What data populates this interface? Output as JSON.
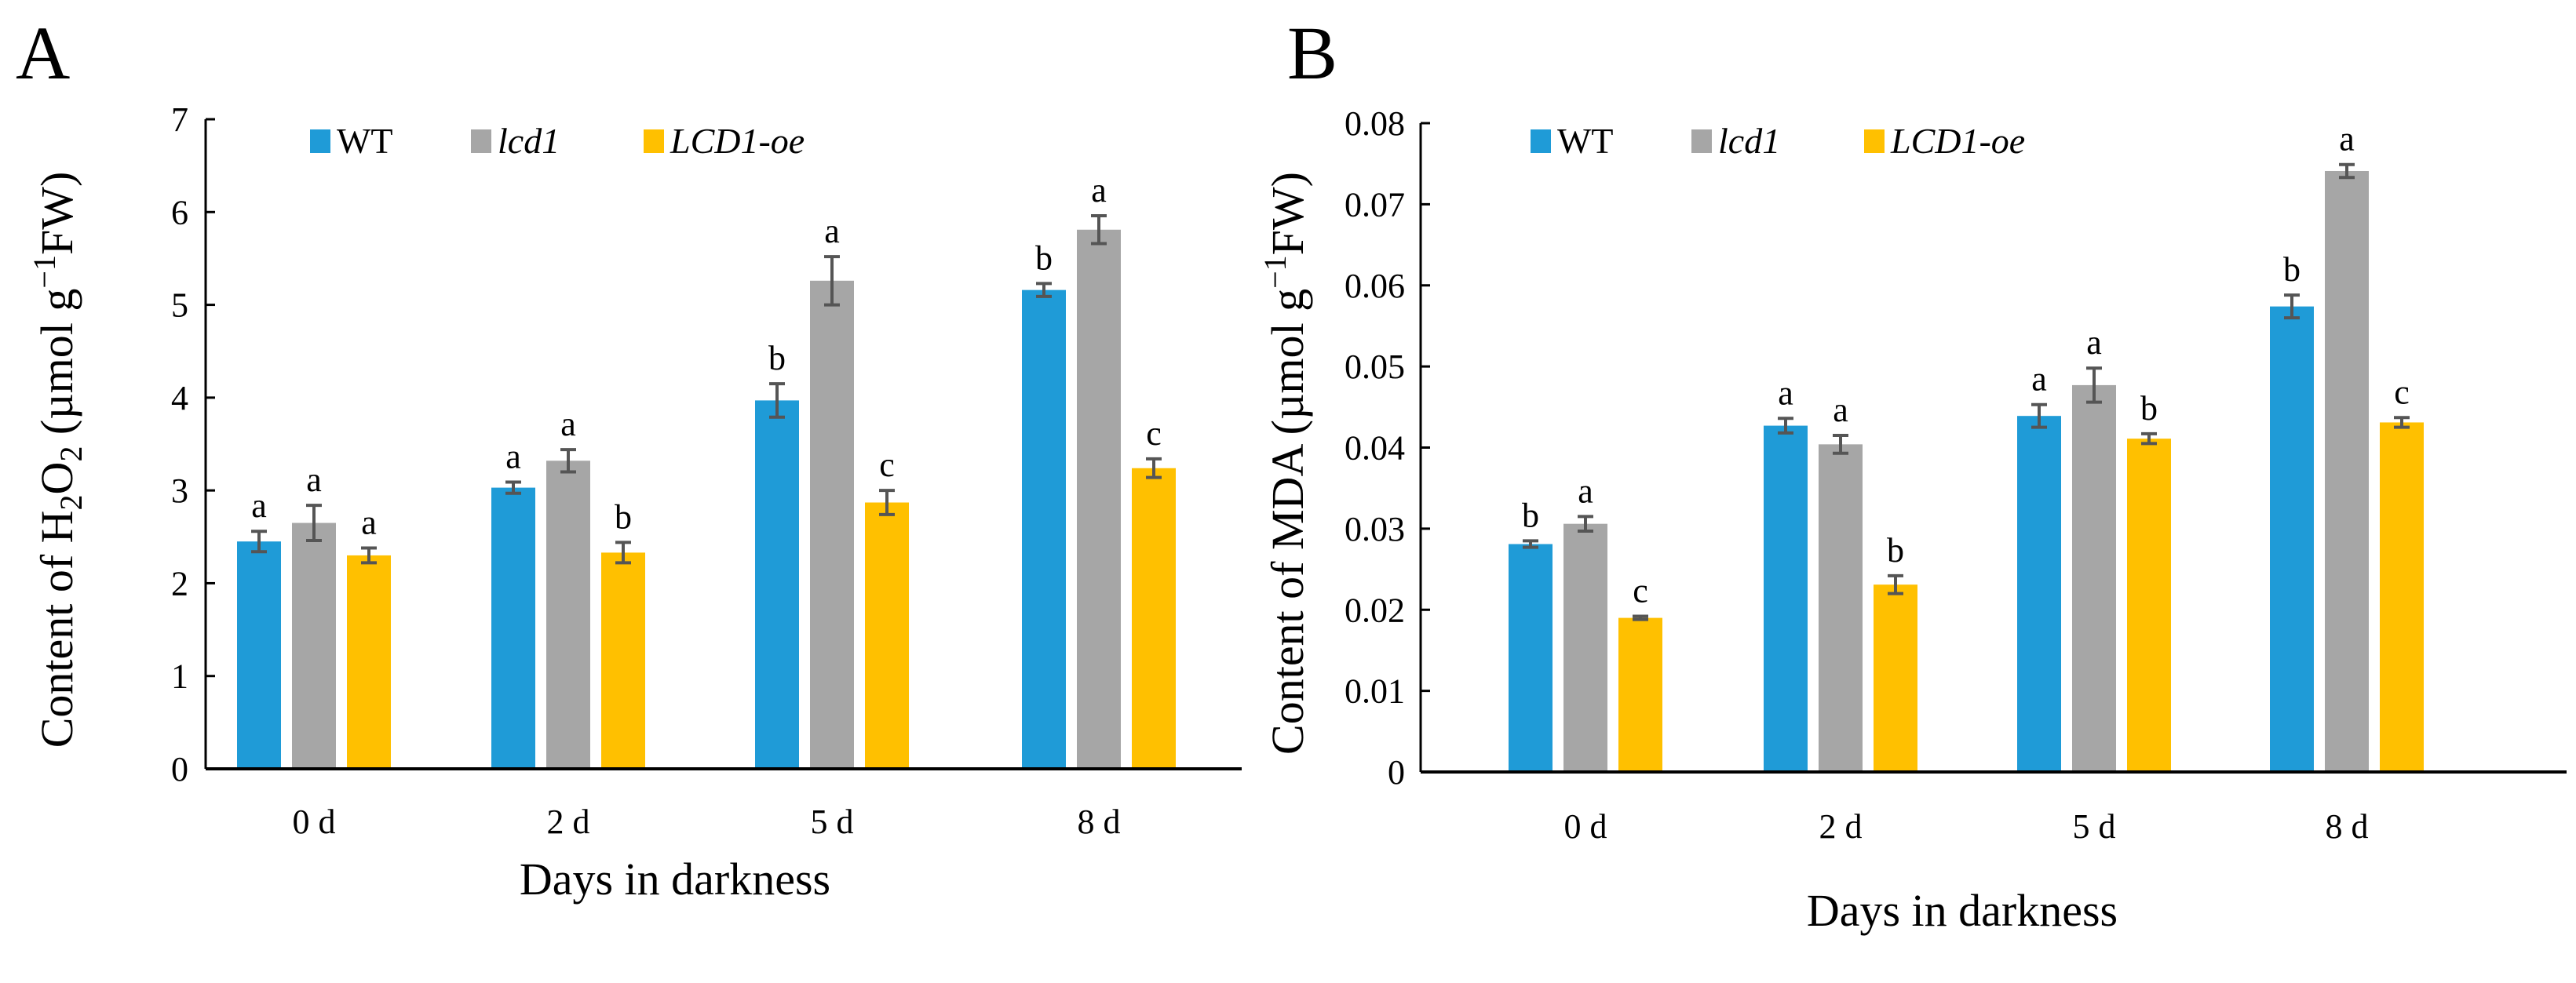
{
  "colors": {
    "WT": "#1f9bd7",
    "lcd1": "#a6a6a6",
    "LCD1-oe": "#ffc000",
    "error": "#555555"
  },
  "chart_data": [
    {
      "panel_label": "A",
      "type": "bar",
      "categories": [
        "0 d",
        "2 d",
        "5 d",
        "8 d"
      ],
      "xlabel": "Days in darkness",
      "ylabel": "Content of H2O2 (µmol g−1 FW)",
      "ylabel_parts": {
        "pre": "Content of H",
        "sub": "2",
        "mid": "O",
        "sub2": "2",
        "post": " (µmol g",
        "sup": "−1",
        "end": "FW)"
      },
      "ylim": [
        0,
        7
      ],
      "yticks": [
        "0",
        "1",
        "2",
        "3",
        "4",
        "5",
        "6",
        "7"
      ],
      "legend_position": "top",
      "series": [
        {
          "name": "WT",
          "italic": false,
          "values": [
            2.45,
            3.03,
            3.97,
            5.16
          ],
          "errors": [
            0.11,
            0.06,
            0.18,
            0.07
          ],
          "letters": [
            "a",
            "a",
            "b",
            "b"
          ]
        },
        {
          "name": "lcd1",
          "italic": true,
          "values": [
            2.65,
            3.32,
            5.26,
            5.81
          ],
          "errors": [
            0.19,
            0.12,
            0.26,
            0.15
          ],
          "letters": [
            "a",
            "a",
            "a",
            "a"
          ]
        },
        {
          "name": "LCD1-oe",
          "italic": true,
          "values": [
            2.3,
            2.33,
            2.87,
            3.24
          ],
          "errors": [
            0.08,
            0.11,
            0.13,
            0.1
          ],
          "letters": [
            "a",
            "b",
            "c",
            "c"
          ]
        }
      ]
    },
    {
      "panel_label": "B",
      "type": "bar",
      "categories": [
        "0 d",
        "2 d",
        "5 d",
        "8 d"
      ],
      "xlabel": "Days in darkness",
      "ylabel": "Content of MDA (µmol g−1 FW)",
      "ylabel_parts": {
        "pre": "Content of MDA (µmol g",
        "sup": "−1",
        "end": "FW)"
      },
      "ylim": [
        0,
        0.08
      ],
      "yticks": [
        "0",
        "0.01",
        "0.02",
        "0.03",
        "0.04",
        "0.05",
        "0.06",
        "0.07",
        "0.08"
      ],
      "legend_position": "top",
      "series": [
        {
          "name": "WT",
          "italic": false,
          "values": [
            0.0281,
            0.0427,
            0.0439,
            0.0574
          ],
          "errors": [
            0.0004,
            0.0009,
            0.0014,
            0.0014
          ],
          "letters": [
            "b",
            "a",
            "a",
            "b"
          ]
        },
        {
          "name": "lcd1",
          "italic": true,
          "values": [
            0.0306,
            0.0404,
            0.0477,
            0.0741
          ],
          "errors": [
            0.0009,
            0.0011,
            0.0021,
            0.0008
          ],
          "letters": [
            "a",
            "a",
            "a",
            "a"
          ]
        },
        {
          "name": "LCD1-oe",
          "italic": true,
          "values": [
            0.019,
            0.0231,
            0.0411,
            0.0431
          ],
          "errors": [
            0.0002,
            0.0011,
            0.0006,
            0.0006
          ],
          "letters": [
            "c",
            "b",
            "b",
            "c"
          ]
        }
      ]
    }
  ]
}
